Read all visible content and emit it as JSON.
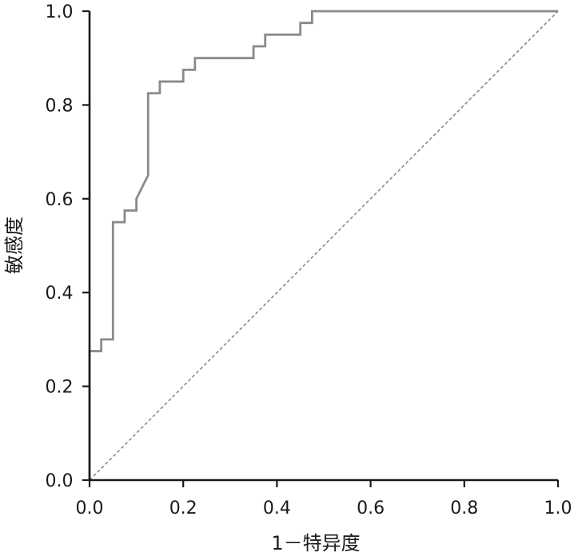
{
  "chart_data": {
    "type": "line",
    "xlabel": "1－特异度",
    "ylabel": "敏感度",
    "xlim": [
      0,
      1
    ],
    "ylim": [
      0,
      1
    ],
    "x_ticks": [
      "0.0",
      "0.2",
      "0.4",
      "0.6",
      "0.8",
      "1.0"
    ],
    "y_ticks": [
      "0.0",
      "0.2",
      "0.4",
      "0.6",
      "0.8",
      "1.0"
    ],
    "grid": false,
    "legend": "none",
    "series": [
      {
        "style": "solid",
        "color": "#8a8a8a",
        "x": [
          0,
          0,
          0.025,
          0.025,
          0.05,
          0.05,
          0.075,
          0.075,
          0.1,
          0.1,
          0.125,
          0.125,
          0.15,
          0.15,
          0.2,
          0.2,
          0.225,
          0.225,
          0.35,
          0.35,
          0.375,
          0.375,
          0.45,
          0.45,
          0.475,
          0.475,
          1.0
        ],
        "y": [
          0,
          0.275,
          0.275,
          0.3,
          0.3,
          0.55,
          0.55,
          0.575,
          0.575,
          0.6,
          0.65,
          0.825,
          0.825,
          0.85,
          0.85,
          0.875,
          0.875,
          0.9,
          0.9,
          0.925,
          0.925,
          0.95,
          0.95,
          0.975,
          0.975,
          1.0,
          1.0
        ]
      },
      {
        "style": "dashed",
        "color": "#8a8a8a",
        "x": [
          0,
          1
        ],
        "y": [
          0,
          1
        ]
      }
    ]
  }
}
